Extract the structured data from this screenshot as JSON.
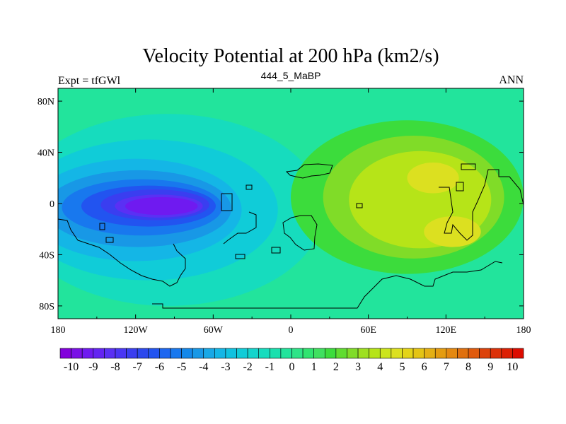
{
  "chart_data": {
    "type": "heatmap",
    "title": "Velocity Potential at 200 hPa (km2/s)",
    "left_label": "Expt = tfGWl",
    "center_label": "444_5_MaBP",
    "right_label": "ANN",
    "x_ticks": [
      "180",
      "120W",
      "60W",
      "0",
      "60E",
      "120E",
      "180"
    ],
    "x_tick_values": [
      -180,
      -120,
      -60,
      0,
      60,
      120,
      180
    ],
    "y_ticks": [
      "80N",
      "40N",
      "0",
      "40S",
      "80S"
    ],
    "y_tick_values": [
      80,
      40,
      0,
      -40,
      -80
    ],
    "xlim": [
      -180,
      180
    ],
    "ylim": [
      -90,
      90
    ],
    "colorbar": {
      "labels": [
        "-10",
        "-9",
        "-8",
        "-7",
        "-6",
        "-5",
        "-4",
        "-3",
        "-2",
        "-1",
        "0",
        "1",
        "2",
        "3",
        "4",
        "5",
        "6",
        "7",
        "8",
        "9",
        "10"
      ],
      "min": -10.5,
      "max": 10.5,
      "step": 0.5,
      "colors": [
        "#8200dc",
        "#7a10e6",
        "#6f1af0",
        "#6424f2",
        "#5a30f4",
        "#4a36f4",
        "#3a3ef0",
        "#2c48ee",
        "#2254f0",
        "#1c66f0",
        "#1878ee",
        "#1488ea",
        "#1898e6",
        "#18a8e6",
        "#14b6e6",
        "#10c2e0",
        "#10ccd8",
        "#14d4cc",
        "#16dcbe",
        "#1ae0ae",
        "#22e49c",
        "#2ee488",
        "#30e470",
        "#40e060",
        "#3cdc3c",
        "#60dc30",
        "#80dc28",
        "#9ee020",
        "#b6e418",
        "#cce41c",
        "#dce020",
        "#e4d418",
        "#e4c414",
        "#e4b014",
        "#e49c10",
        "#e48810",
        "#e0700e",
        "#e05a0c",
        "#dc420a",
        "#dc3008",
        "#dc2004",
        "#dc0c00"
      ]
    },
    "contour_levels": [
      {
        "value": -9.5,
        "lon": -100,
        "lat": -2,
        "rx": 28,
        "ry": 7
      },
      {
        "value": -8.5,
        "lon": -102,
        "lat": -2,
        "rx": 34,
        "ry": 9
      },
      {
        "value": -7.5,
        "lon": -105,
        "lat": -1,
        "rx": 42,
        "ry": 12
      },
      {
        "value": -6.5,
        "lon": -110,
        "lat": -2,
        "rx": 52,
        "ry": 16
      },
      {
        "value": -5.5,
        "lon": -115,
        "lat": -3,
        "rx": 62,
        "ry": 22
      },
      {
        "value": -4.5,
        "lon": -118,
        "lat": -4,
        "rx": 72,
        "ry": 30
      },
      {
        "value": -3.5,
        "lon": -120,
        "lat": -5,
        "rx": 82,
        "ry": 40
      },
      {
        "value": -2.5,
        "lon": -110,
        "lat": -5,
        "rx": 100,
        "ry": 55
      },
      {
        "value": -1.5,
        "lon": -95,
        "lat": -5,
        "rx": 120,
        "ry": 75
      },
      {
        "value": 1.5,
        "lon": 90,
        "lat": 5,
        "rx": 90,
        "ry": 60
      },
      {
        "value": 2.5,
        "lon": 95,
        "lat": 5,
        "rx": 70,
        "ry": 48
      },
      {
        "value": 3.5,
        "lon": 100,
        "lat": 3,
        "rx": 55,
        "ry": 38
      },
      {
        "value": 4.5,
        "lon": 110,
        "lat": 20,
        "rx": 20,
        "ry": 12
      },
      {
        "value": 4.5,
        "lon": 125,
        "lat": -22,
        "rx": 22,
        "ry": 12
      }
    ]
  }
}
